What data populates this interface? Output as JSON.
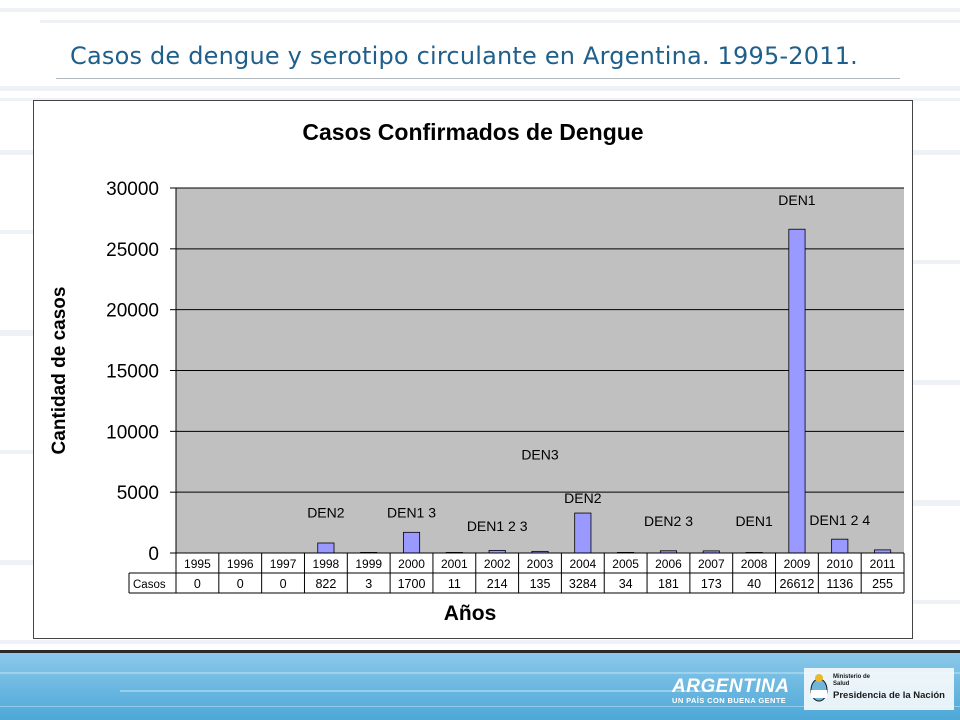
{
  "slide": {
    "title": "Casos de dengue y serotipo circulante en Argentina. 1995-2011."
  },
  "footer": {
    "brand": "ARGENTINA",
    "brand_tagline": "UN PAÍS CON BUENA GENTE",
    "ministry_line1": "Ministerio de",
    "ministry_line2": "Salud",
    "presidencia": "Presidencia de la Nación",
    "colors": {
      "band": "#62b3dc",
      "band_light": "#a8d5ee"
    }
  },
  "chart_data": {
    "type": "bar",
    "title": "Casos Confirmados de Dengue",
    "xlabel": "Años",
    "ylabel": "Cantidad de casos",
    "ylim": [
      0,
      30000
    ],
    "yticks": [
      0,
      5000,
      10000,
      15000,
      20000,
      25000,
      30000
    ],
    "grid": true,
    "bar_color": "#9999ff",
    "plot_bg": "#c0c0c0",
    "categories": [
      "1995",
      "1996",
      "1997",
      "1998",
      "1999",
      "2000",
      "2001",
      "2002",
      "2003",
      "2004",
      "2005",
      "2006",
      "2007",
      "2008",
      "2009",
      "2010",
      "2011"
    ],
    "series": [
      {
        "name": "Casos",
        "values": [
          0,
          0,
          0,
          822,
          3,
          1700,
          11,
          214,
          135,
          3284,
          34,
          181,
          173,
          40,
          26612,
          1136,
          255
        ]
      }
    ],
    "annotations": [
      {
        "category": "1998",
        "text": "DEN2",
        "y": 2900
      },
      {
        "category": "2000",
        "text": "DEN1 3",
        "y": 2900
      },
      {
        "category": "2002",
        "text": "DEN1 2 3",
        "y": 1800
      },
      {
        "category": "2003",
        "text": "DEN3",
        "y": 7700
      },
      {
        "category": "2004",
        "text": "DEN2",
        "y": 4100
      },
      {
        "category": "2006",
        "text": "DEN2 3",
        "y": 2200
      },
      {
        "category": "2008",
        "text": "DEN1",
        "y": 2200
      },
      {
        "category": "2009",
        "text": "DEN1",
        "y": 28600
      },
      {
        "category": "2010",
        "text": "DEN1 2 4",
        "y": 2300
      }
    ]
  }
}
